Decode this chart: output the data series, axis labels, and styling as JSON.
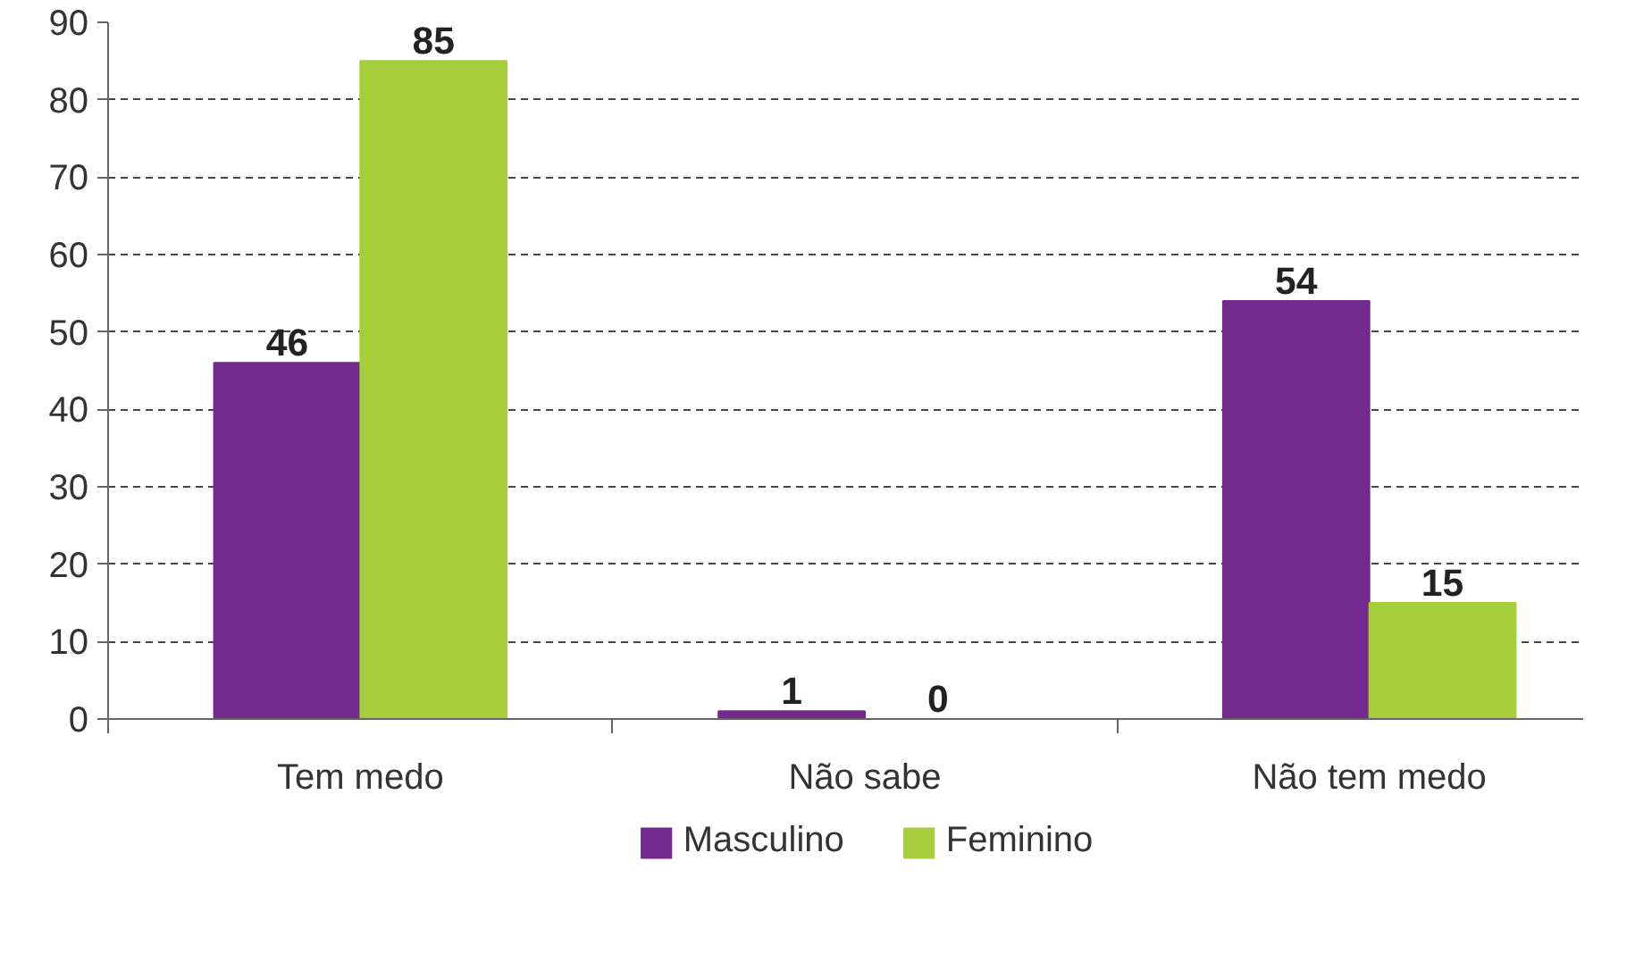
{
  "chart_data": {
    "type": "bar",
    "categories": [
      "Tem medo",
      "Não sabe",
      "Não tem medo"
    ],
    "series": [
      {
        "name": "Masculino",
        "color": "#722a8e",
        "values": [
          46,
          1,
          54
        ]
      },
      {
        "name": "Feminino",
        "color": "#a6cd3a",
        "values": [
          85,
          0,
          15
        ]
      }
    ],
    "ylim": [
      0,
      90
    ],
    "yticks": [
      0,
      10,
      20,
      30,
      40,
      50,
      60,
      70,
      80,
      90
    ],
    "grid": "y",
    "legend": "bottom",
    "data_labels": true
  }
}
